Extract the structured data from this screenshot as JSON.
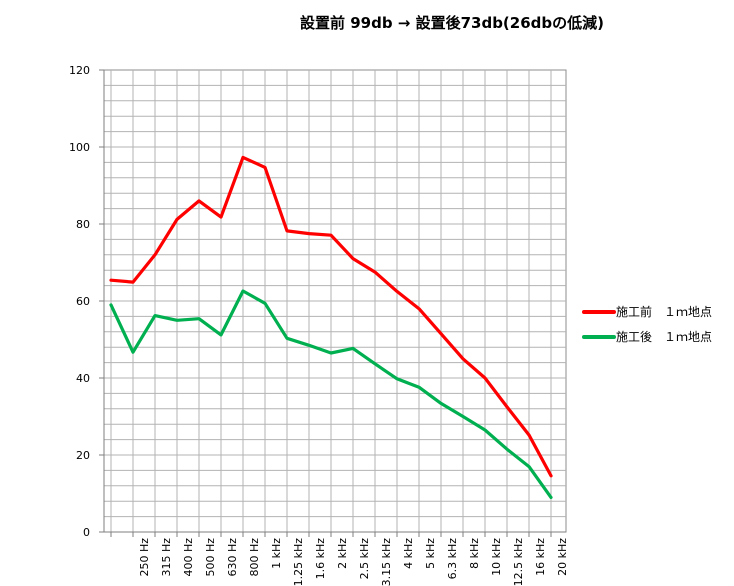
{
  "chart_data": {
    "type": "line",
    "title": "設置前 99db → 設置後73db(26dbの低減)",
    "xlabel": "",
    "ylabel": "",
    "ylim": [
      0,
      120
    ],
    "yticks": [
      0,
      20,
      40,
      60,
      80,
      100,
      120
    ],
    "grid": true,
    "legend_position": "right",
    "categories": [
      "",
      "250 Hz",
      "315 Hz",
      "400 Hz",
      "500 Hz",
      "630 Hz",
      "800 Hz",
      "1 kHz",
      "1.25 kHz",
      "1.6 kHz",
      "2 kHz",
      "2.5 kHz",
      "3.15 kHz",
      "4 kHz",
      "5 kHz",
      "6.3 kHz",
      "8 kHz",
      "10 kHz",
      "12.5 kHz",
      "16 kHz",
      "20 kHz"
    ],
    "series": [
      {
        "name": "施工前　１ｍ地点",
        "color": "#ff0000",
        "values": [
          65.4,
          64.9,
          72.0,
          81.2,
          86.0,
          81.8,
          97.3,
          94.7,
          78.2,
          77.5,
          77.1,
          71.0,
          67.5,
          62.5,
          58.0,
          51.5,
          45.0,
          40.0,
          32.5,
          25.2,
          14.6
        ]
      },
      {
        "name": "施工後　１ｍ地点",
        "color": "#00b050",
        "values": [
          59.0,
          46.7,
          56.2,
          55.0,
          55.4,
          51.2,
          62.6,
          59.4,
          50.3,
          48.5,
          46.5,
          47.7,
          43.7,
          39.8,
          37.6,
          33.4,
          30.0,
          26.5,
          21.5,
          17.0,
          9.0
        ]
      }
    ]
  }
}
